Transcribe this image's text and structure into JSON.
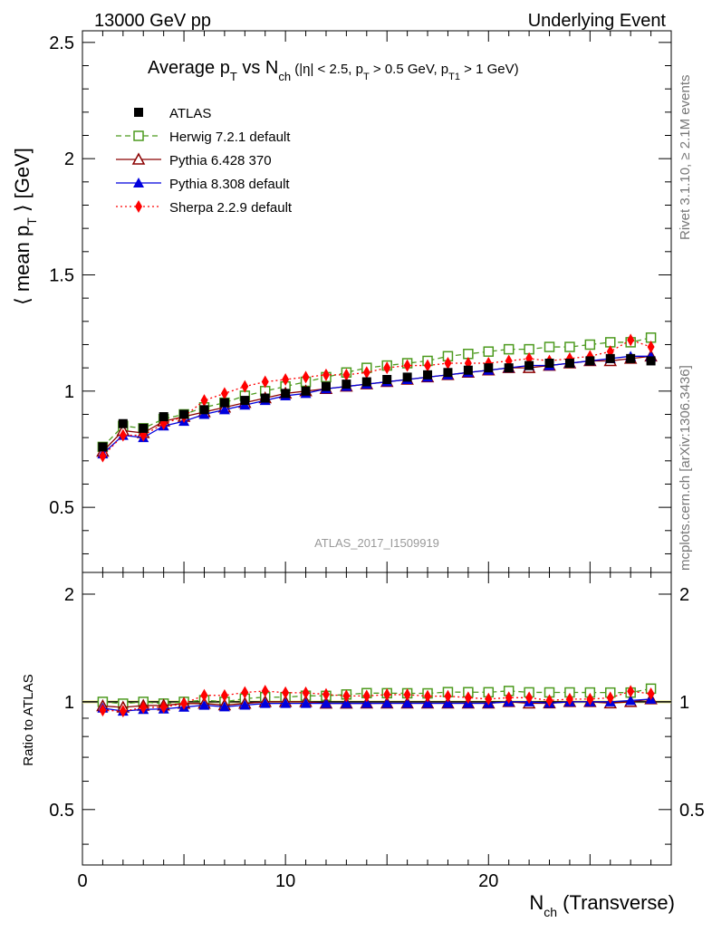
{
  "header": {
    "left": "13000 GeV pp",
    "right": "Underlying Event"
  },
  "side_labels": {
    "rivet": "Rivet 3.1.10, ≥ 2.1M events",
    "mcplots": "mcplots.cern.ch [arXiv:1306.3436]"
  },
  "watermark": "ATLAS_2017_I1509919",
  "colors": {
    "ATLAS": "#000000",
    "Herwig": "#4c9a1e",
    "Pythia6": "#8b0000",
    "Pythia8": "#0000dd",
    "Sherpa": "#ff0000"
  },
  "chart_data": {
    "type": "scatter",
    "title": "Average p_T vs N_ch (|η| < 2.5, p_T > 0.5 GeV, p_T1 > 1 GeV)",
    "title_parts": {
      "main": "Average p",
      "sub1": "T",
      "vs": " vs N",
      "sub2": "ch",
      "cut1": " (|η| < 2.5, p",
      "sub3": "T",
      "cut2": " > 0.5 GeV, p",
      "sub4": "T1",
      "cut3": " > 1 GeV)"
    },
    "ylabel_parts": {
      "pre": "⟨ mean p",
      "sub": "T",
      "post": " ⟩ [GeV]"
    },
    "xlabel_parts": {
      "pre": "N",
      "sub": "ch",
      "post": " (Transverse)"
    },
    "ratio_ylabel": "Ratio to ATLAS",
    "xlim": [
      0,
      29
    ],
    "ylim": [
      0.22,
      2.55
    ],
    "ratio_ylim": [
      0.35,
      2.3
    ],
    "x_ticks": [
      0,
      10,
      20
    ],
    "y_ticks": [
      0.5,
      1,
      1.5,
      2,
      2.5
    ],
    "y_tick_labels": [
      "0.5",
      "1",
      "1.5",
      "2",
      "2.5"
    ],
    "ratio_ticks": [
      0.5,
      1,
      2
    ],
    "ratio_tick_labels": [
      "0.5",
      "1",
      "2"
    ],
    "legend_position": "top-left",
    "grid": false,
    "x": [
      1,
      2,
      3,
      4,
      5,
      6,
      7,
      8,
      9,
      10,
      11,
      12,
      13,
      14,
      15,
      16,
      17,
      18,
      19,
      20,
      21,
      22,
      23,
      24,
      25,
      26,
      27,
      28
    ],
    "series": [
      {
        "name": "ATLAS",
        "marker": "square-filled",
        "line": "none",
        "color_key": "ATLAS",
        "values": [
          0.76,
          0.86,
          0.84,
          0.89,
          0.9,
          0.92,
          0.95,
          0.96,
          0.97,
          0.99,
          1.0,
          1.02,
          1.03,
          1.04,
          1.05,
          1.06,
          1.07,
          1.08,
          1.09,
          1.1,
          1.1,
          1.11,
          1.12,
          1.12,
          1.13,
          1.14,
          1.14,
          1.13
        ]
      },
      {
        "name": "Herwig 7.2.1 default",
        "marker": "square-open",
        "line": "dashed",
        "color_key": "Herwig",
        "values": [
          0.76,
          0.85,
          0.84,
          0.88,
          0.9,
          0.93,
          0.95,
          0.98,
          1.0,
          1.02,
          1.04,
          1.06,
          1.08,
          1.1,
          1.11,
          1.12,
          1.13,
          1.15,
          1.16,
          1.17,
          1.18,
          1.18,
          1.19,
          1.19,
          1.2,
          1.21,
          1.21,
          1.23
        ]
      },
      {
        "name": "Pythia 6.428 370",
        "marker": "triangle-open",
        "line": "solid",
        "color_key": "Pythia6",
        "values": [
          0.74,
          0.83,
          0.82,
          0.87,
          0.89,
          0.91,
          0.93,
          0.95,
          0.97,
          0.99,
          1.0,
          1.01,
          1.02,
          1.03,
          1.04,
          1.05,
          1.06,
          1.07,
          1.08,
          1.09,
          1.1,
          1.1,
          1.11,
          1.12,
          1.13,
          1.13,
          1.14,
          1.15
        ]
      },
      {
        "name": "Pythia 8.308 default",
        "marker": "triangle-filled",
        "line": "solid",
        "color_key": "Pythia8",
        "values": [
          0.73,
          0.81,
          0.8,
          0.85,
          0.87,
          0.9,
          0.92,
          0.94,
          0.96,
          0.98,
          0.99,
          1.01,
          1.02,
          1.03,
          1.04,
          1.05,
          1.06,
          1.07,
          1.08,
          1.09,
          1.1,
          1.11,
          1.11,
          1.12,
          1.13,
          1.14,
          1.15,
          1.15
        ]
      },
      {
        "name": "Sherpa 2.2.9 default",
        "marker": "diamond-filled",
        "line": "dotted",
        "color_key": "Sherpa",
        "values": [
          0.72,
          0.81,
          0.81,
          0.86,
          0.89,
          0.96,
          0.99,
          1.02,
          1.04,
          1.05,
          1.06,
          1.07,
          1.07,
          1.08,
          1.1,
          1.11,
          1.11,
          1.12,
          1.12,
          1.12,
          1.13,
          1.14,
          1.13,
          1.14,
          1.15,
          1.17,
          1.22,
          1.19
        ]
      }
    ]
  }
}
